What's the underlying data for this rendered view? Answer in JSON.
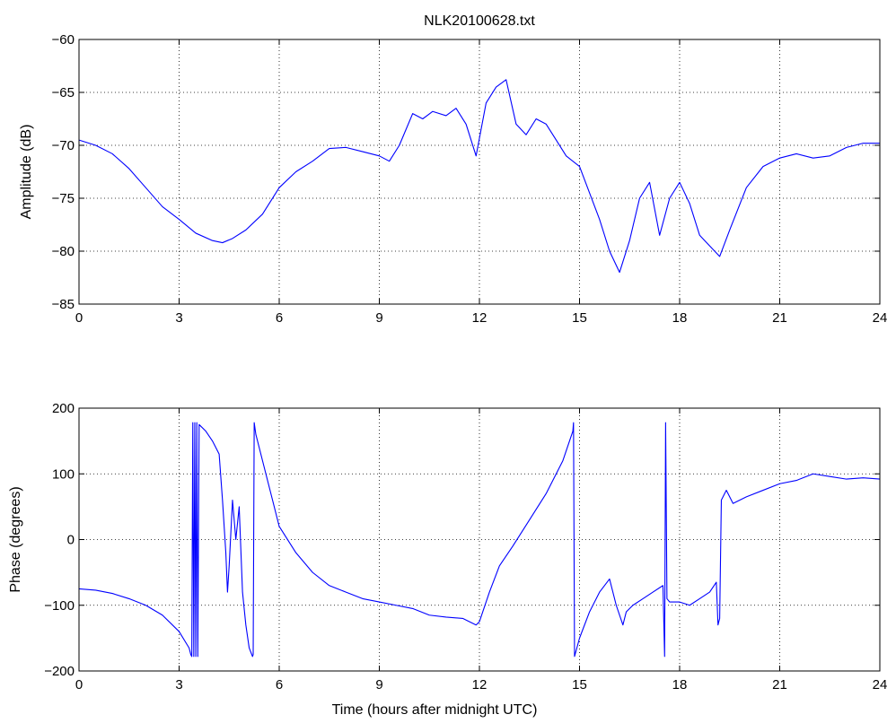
{
  "figure_title": "NLK20100628.txt",
  "chart_data": [
    {
      "type": "line",
      "title": "NLK20100628.txt",
      "xlabel": "",
      "ylabel": "Amplitude (dB)",
      "xlim": [
        0,
        24
      ],
      "ylim": [
        -85,
        -60
      ],
      "xticks": [
        0,
        3,
        6,
        9,
        12,
        15,
        18,
        21,
        24
      ],
      "yticks": [
        -85,
        -80,
        -75,
        -70,
        -65,
        -60
      ],
      "grid": true,
      "line_color": "#0000ff",
      "series": [
        {
          "x": [
            0,
            0.5,
            1.0,
            1.5,
            2.0,
            2.5,
            3.0,
            3.5,
            4.0,
            4.3,
            4.6,
            5.0,
            5.5,
            6.0,
            6.5,
            7.0,
            7.5,
            8.0,
            8.5,
            9.0,
            9.3,
            9.6,
            10.0,
            10.3,
            10.6,
            11.0,
            11.3,
            11.6,
            11.9,
            12.2,
            12.5,
            12.8,
            13.1,
            13.4,
            13.7,
            14.0,
            14.3,
            14.6,
            15.0,
            15.3,
            15.6,
            15.9,
            16.2,
            16.5,
            16.8,
            17.1,
            17.4,
            17.7,
            18.0,
            18.3,
            18.6,
            18.9,
            19.2,
            19.5,
            20.0,
            20.5,
            21.0,
            21.5,
            22.0,
            22.5,
            23.0,
            23.5,
            24.0
          ],
          "y": [
            -69.5,
            -70.0,
            -70.8,
            -72.2,
            -74.0,
            -75.8,
            -77.0,
            -78.3,
            -79.0,
            -79.2,
            -78.8,
            -78.0,
            -76.5,
            -74.0,
            -72.5,
            -71.5,
            -70.3,
            -70.2,
            -70.6,
            -71.0,
            -71.5,
            -70.0,
            -67.0,
            -67.5,
            -66.8,
            -67.2,
            -66.5,
            -68.0,
            -71.0,
            -66.0,
            -64.5,
            -63.8,
            -68.0,
            -69.0,
            -67.5,
            -68.0,
            -69.5,
            -71.0,
            -72.0,
            -74.5,
            -77.0,
            -80.0,
            -82.0,
            -79.0,
            -75.0,
            -73.5,
            -78.5,
            -75.0,
            -73.5,
            -75.5,
            -78.5,
            -79.5,
            -80.5,
            -78.0,
            -74.0,
            -72.0,
            -71.2,
            -70.8,
            -71.2,
            -71.0,
            -70.2,
            -69.8,
            -69.8
          ]
        }
      ]
    },
    {
      "type": "line",
      "title": "",
      "xlabel": "Time (hours after midnight UTC)",
      "ylabel": "Phase (degrees)",
      "xlim": [
        0,
        24
      ],
      "ylim": [
        -200,
        200
      ],
      "xticks": [
        0,
        3,
        6,
        9,
        12,
        15,
        18,
        21,
        24
      ],
      "yticks": [
        -200,
        -100,
        0,
        100,
        200
      ],
      "grid": true,
      "line_color": "#0000ff",
      "series": [
        {
          "x": [
            0,
            0.5,
            1.0,
            1.5,
            2.0,
            2.5,
            3.0,
            3.3,
            3.35,
            3.38,
            3.41,
            3.44,
            3.47,
            3.5,
            3.53,
            3.56,
            3.6,
            3.8,
            4.0,
            4.2,
            4.3,
            4.4,
            4.45,
            4.5,
            4.6,
            4.7,
            4.8,
            4.9,
            5.0,
            5.1,
            5.2,
            5.22,
            5.25,
            5.3,
            5.5,
            5.8,
            6.0,
            6.5,
            7.0,
            7.5,
            8.0,
            8.5,
            9.0,
            9.5,
            10.0,
            10.5,
            11.0,
            11.5,
            11.9,
            12.0,
            12.3,
            12.6,
            13.0,
            13.5,
            14.0,
            14.5,
            14.8,
            14.82,
            14.85,
            15.0,
            15.3,
            15.6,
            15.9,
            16.1,
            16.3,
            16.4,
            16.6,
            16.9,
            17.2,
            17.5,
            17.55,
            17.58,
            17.62,
            17.7,
            18.0,
            18.3,
            18.6,
            18.9,
            19.1,
            19.15,
            19.2,
            19.25,
            19.4,
            19.6,
            20.0,
            20.5,
            21.0,
            21.5,
            22.0,
            22.5,
            23.0,
            23.5,
            24.0
          ],
          "y": [
            -75,
            -77,
            -82,
            -90,
            -100,
            -115,
            -140,
            -165,
            -175,
            -178,
            178,
            -178,
            178,
            -178,
            178,
            -178,
            175,
            165,
            150,
            130,
            60,
            -20,
            -80,
            -40,
            60,
            0,
            50,
            -80,
            -130,
            -165,
            -178,
            -175,
            178,
            160,
            120,
            60,
            20,
            -20,
            -50,
            -70,
            -80,
            -90,
            -95,
            -100,
            -105,
            -115,
            -118,
            -120,
            -130,
            -125,
            -80,
            -40,
            -10,
            30,
            70,
            120,
            165,
            178,
            -178,
            -150,
            -110,
            -80,
            -60,
            -100,
            -130,
            -110,
            -100,
            -90,
            -80,
            -70,
            -178,
            178,
            -90,
            -95,
            -95,
            -100,
            -90,
            -80,
            -65,
            -130,
            -120,
            60,
            75,
            55,
            65,
            75,
            85,
            90,
            100,
            96,
            92,
            94,
            92
          ]
        }
      ]
    }
  ]
}
